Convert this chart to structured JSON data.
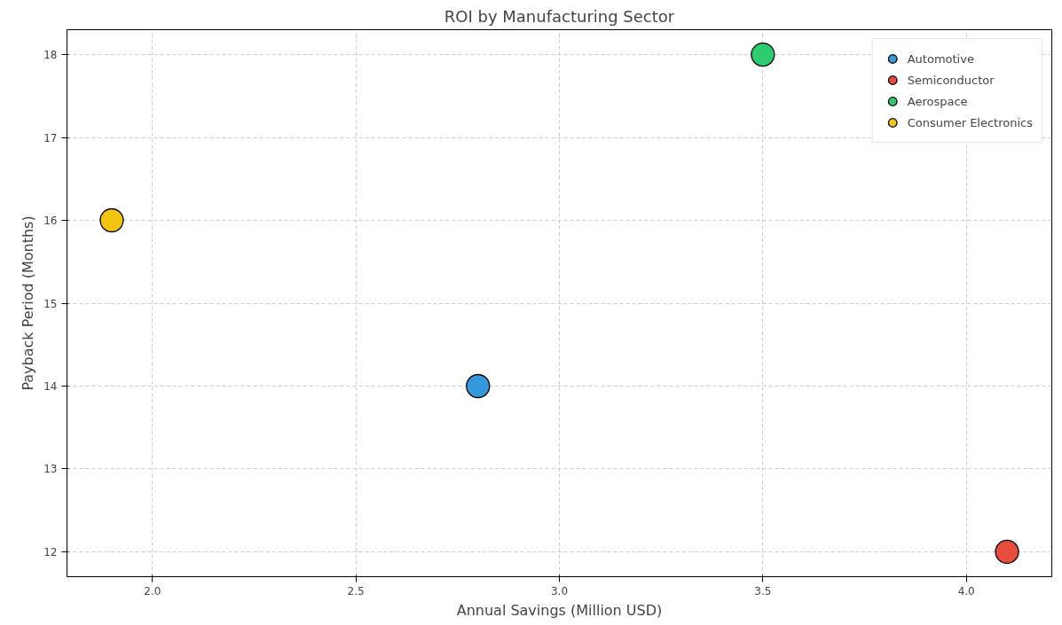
{
  "chart_data": {
    "type": "scatter",
    "title": "ROI by Manufacturing Sector",
    "xlabel": "Annual Savings (Million USD)",
    "ylabel": "Payback Period (Months)",
    "xlim": [
      1.79,
      4.21
    ],
    "xticks": [
      {
        "value": 2.0,
        "label": "2.0"
      },
      {
        "value": 2.5,
        "label": "2.5"
      },
      {
        "value": 3.0,
        "label": "3.0"
      },
      {
        "value": 3.5,
        "label": "3.5"
      },
      {
        "value": 4.0,
        "label": "4.0"
      }
    ],
    "ylim": [
      11.7,
      18.3
    ],
    "yticks": [
      12,
      13,
      14,
      15,
      16,
      17,
      18
    ],
    "series": [
      {
        "name": "Automotive",
        "color": "#3498db",
        "x": [
          2.8
        ],
        "values": [
          14
        ]
      },
      {
        "name": "Semiconductor",
        "color": "#e74c3c",
        "x": [
          4.1
        ],
        "values": [
          12
        ]
      },
      {
        "name": "Aerospace",
        "color": "#2ecc71",
        "x": [
          3.5
        ],
        "values": [
          18
        ]
      },
      {
        "name": "Consumer Electronics",
        "color": "#f1c40f",
        "x": [
          1.9
        ],
        "values": [
          16
        ]
      }
    ],
    "grid": true,
    "legend": "top right",
    "marker": "circle"
  }
}
